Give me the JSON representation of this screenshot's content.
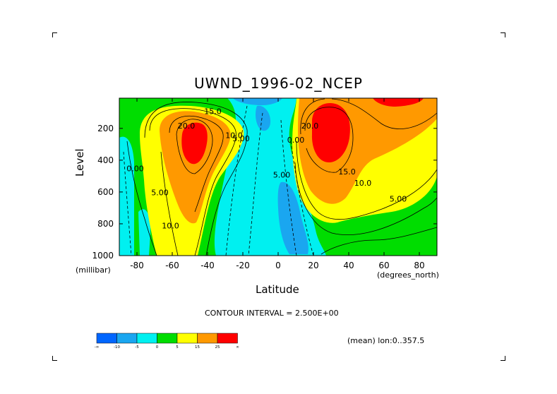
{
  "chart_data": {
    "type": "heatmap",
    "title": "UWND_1996-02_NCEP",
    "xlabel": "Latitude",
    "ylabel": "Level",
    "x_unit": "(degrees_north)",
    "y_unit": "(millibar)",
    "x_ticks": [
      -80,
      -60,
      -40,
      -20,
      0,
      20,
      40,
      60,
      80
    ],
    "y_ticks": [
      200,
      400,
      600,
      800,
      1000
    ],
    "xlim": [
      -90,
      90
    ],
    "ylim": [
      1000,
      10
    ],
    "contour_interval_text": "CONTOUR INTERVAL = 2.500E+00",
    "annotation": "(mean) lon:0..357.5",
    "colorbar": {
      "tick_labels": [
        "-∞",
        "-10",
        "-5",
        "0",
        "5",
        "15",
        "25",
        "∞"
      ],
      "colors": [
        "#0066ff",
        "#1aa6f0",
        "#00f0f0",
        "#00dd00",
        "#ffff00",
        "#ff9900",
        "#ff0000"
      ]
    },
    "jets": [
      {
        "lat": -48,
        "level": 250,
        "peak_value": 25
      },
      {
        "lat": 28,
        "level": 200,
        "peak_value": 50
      }
    ],
    "contour_labels": [
      {
        "text": "20.0",
        "lat": -52,
        "level": 200
      },
      {
        "text": "15.0",
        "lat": -37,
        "level": 110
      },
      {
        "text": "10.0",
        "lat": -25,
        "level": 260
      },
      {
        "text": "5.00",
        "lat": -21,
        "level": 280
      },
      {
        "text": "0.00",
        "lat": -81,
        "level": 470
      },
      {
        "text": "5.00",
        "lat": -67,
        "level": 620
      },
      {
        "text": "10.0",
        "lat": -61,
        "level": 830
      },
      {
        "text": "0.00",
        "lat": 10,
        "level": 290
      },
      {
        "text": "5.00",
        "lat": 2,
        "level": 510
      },
      {
        "text": "20.0",
        "lat": 18,
        "level": 200
      },
      {
        "text": "15.0",
        "lat": 39,
        "level": 490
      },
      {
        "text": "10.0",
        "lat": 48,
        "level": 560
      },
      {
        "text": "5.00",
        "lat": 68,
        "level": 660
      }
    ]
  }
}
